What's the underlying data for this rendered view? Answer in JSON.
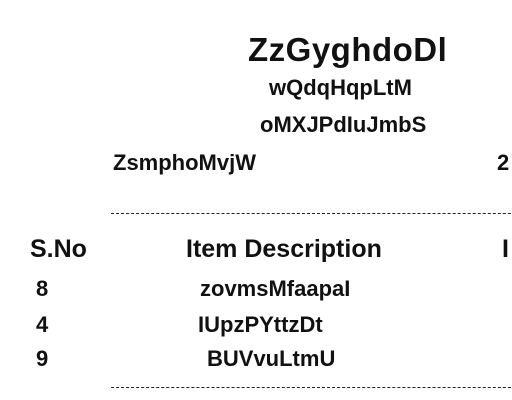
{
  "receipt": {
    "title": "ZzGyghdoDl",
    "subtitle_1": "wQdqHqpLtM",
    "subtitle_2": "oMXJPdIuJmbS",
    "left_info": "ZsmphoMvjW",
    "right_info": "2"
  },
  "table": {
    "headers": {
      "sno": "S.No",
      "description": "Item Description",
      "partial_next_column": "I"
    },
    "rows": [
      {
        "sno": "8",
        "description": "zovmsMfaapaI"
      },
      {
        "sno": "4",
        "description": "IUpzPYttzDt"
      },
      {
        "sno": "9",
        "description": "BUVvuLtmU"
      }
    ]
  }
}
